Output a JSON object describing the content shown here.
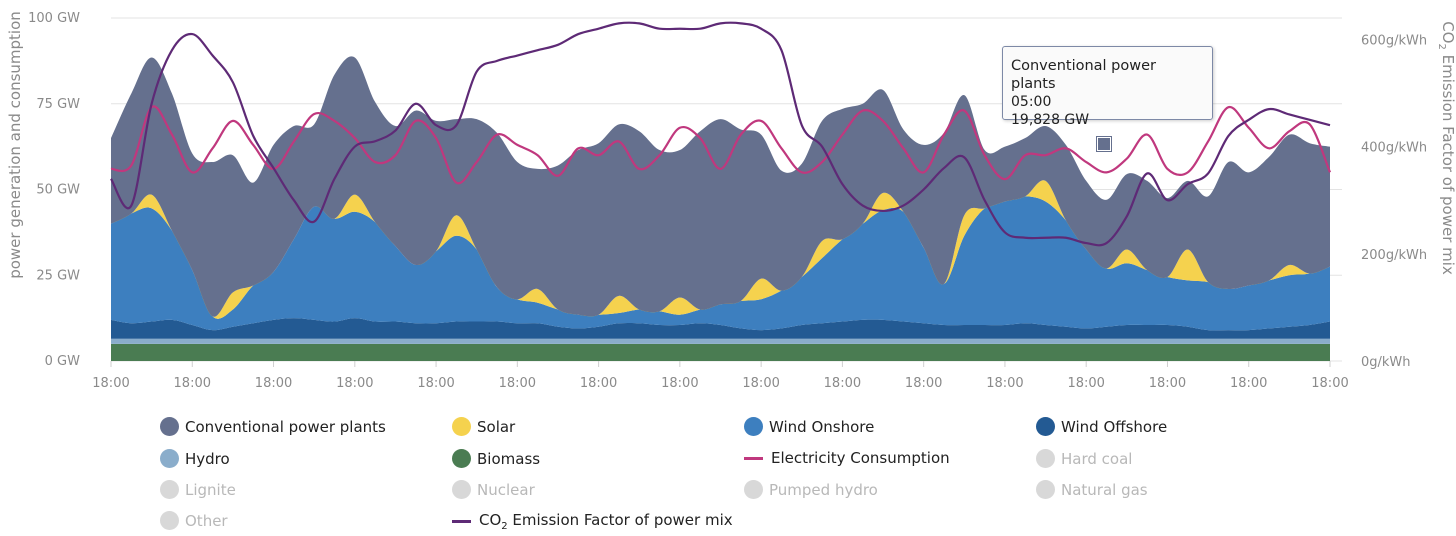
{
  "chart_data": {
    "type": "area",
    "title": "",
    "ylabel": "power generation and consumption",
    "y2label_main": "CO",
    "y2label_sub": "2",
    "y2label_rest": " Emission Factor of power mix",
    "ylim": [
      0,
      100
    ],
    "y2lim": [
      0,
      640
    ],
    "yticks": [
      "0 GW",
      "25 GW",
      "50 GW",
      "75 GW",
      "100 GW"
    ],
    "y2ticks": [
      "0g/kWh",
      "200g/kWh",
      "400g/kWh",
      "600g/kWh"
    ],
    "xticks": [
      "18:00",
      "18:00",
      "18:00",
      "18:00",
      "18:00",
      "18:00",
      "18:00",
      "18:00",
      "18:00",
      "18:00",
      "18:00",
      "18:00",
      "18:00",
      "18:00",
      "18:00",
      "18:00"
    ],
    "grid": true,
    "legend_placement": "bottom",
    "x": [
      0,
      0.25,
      0.5,
      0.75,
      1,
      1.25,
      1.5,
      1.75,
      2,
      2.25,
      2.5,
      2.75,
      3,
      3.25,
      3.5,
      3.75,
      4,
      4.25,
      4.5,
      4.75,
      5,
      5.25,
      5.5,
      5.75,
      6,
      6.25,
      6.5,
      6.75,
      7,
      7.25,
      7.5,
      7.75,
      8,
      8.25,
      8.5,
      8.75,
      9,
      9.25,
      9.5,
      9.75,
      10,
      10.25,
      10.5,
      10.75,
      11,
      11.25,
      11.5,
      11.75,
      12,
      12.25,
      12.5,
      12.75,
      13,
      13.25,
      13.5,
      13.75,
      14,
      14.25,
      14.5,
      14.75,
      15
    ],
    "series": [
      {
        "name": "Biomass",
        "kind": "area",
        "color": "#4a7c52",
        "values": [
          5,
          5,
          5,
          5,
          5,
          5,
          5,
          5,
          5,
          5,
          5,
          5,
          5,
          5,
          5,
          5,
          5,
          5,
          5,
          5,
          5,
          5,
          5,
          5,
          5,
          5,
          5,
          5,
          5,
          5,
          5,
          5,
          5,
          5,
          5,
          5,
          5,
          5,
          5,
          5,
          5,
          5,
          5,
          5,
          5,
          5,
          5,
          5,
          5,
          5,
          5,
          5,
          5,
          5,
          5,
          5,
          5,
          5,
          5,
          5,
          5
        ]
      },
      {
        "name": "Hydro",
        "kind": "area",
        "color": "#8aadcb",
        "values": [
          1.5,
          1.5,
          1.5,
          1.5,
          1.5,
          1.5,
          1.5,
          1.5,
          1.5,
          1.5,
          1.5,
          1.5,
          1.5,
          1.5,
          1.5,
          1.5,
          1.5,
          1.5,
          1.5,
          1.5,
          1.5,
          1.5,
          1.5,
          1.5,
          1.5,
          1.5,
          1.5,
          1.5,
          1.5,
          1.5,
          1.5,
          1.5,
          1.5,
          1.5,
          1.5,
          1.5,
          1.5,
          1.5,
          1.5,
          1.5,
          1.5,
          1.5,
          1.5,
          1.5,
          1.5,
          1.5,
          1.5,
          1.5,
          1.5,
          1.5,
          1.5,
          1.5,
          1.5,
          1.5,
          1.5,
          1.5,
          1.5,
          1.5,
          1.5,
          1.5,
          1.5
        ]
      },
      {
        "name": "Wind Offshore",
        "kind": "area",
        "color": "#235a93",
        "values": [
          5.5,
          4.5,
          5,
          5.5,
          4,
          2.5,
          3.5,
          4.5,
          5.5,
          6,
          5.5,
          5,
          6,
          5,
          5,
          4.5,
          4.5,
          5,
          5,
          5,
          4.5,
          4.5,
          3.5,
          3,
          3.5,
          4.5,
          4.5,
          4,
          4,
          4.5,
          4,
          3,
          2.5,
          3,
          4,
          4.5,
          5,
          5.5,
          5.5,
          5,
          4.5,
          4,
          4,
          4,
          4,
          4.5,
          4,
          3.5,
          3,
          3.5,
          4,
          4,
          4,
          3.5,
          2.5,
          2.5,
          2.5,
          3,
          3.5,
          4,
          5
        ]
      },
      {
        "name": "Wind Onshore",
        "kind": "area",
        "color": "#3d7fbf",
        "values": [
          28,
          32,
          33,
          26,
          16,
          4,
          5,
          11,
          14,
          23,
          33,
          30,
          31,
          29,
          22,
          17,
          21,
          25,
          21,
          10,
          7,
          6,
          5,
          4,
          3.5,
          3,
          4,
          4,
          3,
          4,
          6,
          8,
          9,
          11,
          14,
          19,
          24,
          28,
          32,
          32,
          22,
          12,
          26,
          34,
          36,
          37,
          36,
          31,
          23,
          17,
          18,
          16,
          14,
          13.5,
          14,
          12,
          13,
          14,
          15,
          15,
          16
        ]
      },
      {
        "name": "Solar",
        "kind": "area",
        "color": "#f5d24e",
        "values": [
          0,
          0,
          4,
          0,
          0,
          0,
          5,
          0,
          0,
          0,
          0,
          0,
          5,
          0,
          0,
          0,
          0,
          6,
          0,
          0,
          0,
          4,
          0,
          0,
          0,
          5,
          0,
          0,
          5,
          0,
          0,
          0,
          6,
          0,
          0,
          5,
          0,
          0,
          5,
          0,
          0,
          0,
          6,
          0,
          0,
          0,
          6,
          0,
          0,
          0,
          4,
          0,
          0,
          9,
          0,
          0,
          0,
          0,
          3,
          0,
          0
        ]
      },
      {
        "name": "Conventional power plants",
        "kind": "area",
        "color": "#65708e",
        "values": [
          25,
          35,
          40,
          40,
          34,
          45,
          40,
          30,
          37,
          33,
          24,
          42,
          40,
          35,
          35,
          45,
          38,
          28,
          38,
          45,
          40,
          35,
          42,
          48,
          50,
          50,
          52,
          47,
          43,
          52,
          54,
          50,
          42,
          35,
          33,
          35,
          38,
          35,
          30,
          24,
          30,
          44,
          35,
          17,
          16,
          17,
          16,
          22,
          20,
          20,
          22,
          26,
          23,
          20,
          25,
          37,
          33,
          36,
          38,
          38,
          35
        ]
      },
      {
        "name": "Electricity Consumption",
        "kind": "line",
        "color": "#c0387e",
        "values": [
          56,
          57,
          74,
          66,
          55,
          62,
          70,
          63,
          56,
          64,
          72,
          70,
          65,
          58,
          60,
          70,
          65,
          52,
          58,
          66,
          63,
          60,
          54,
          62,
          60,
          64,
          56,
          60,
          68,
          65,
          56,
          66,
          70,
          62,
          55,
          58,
          66,
          73,
          70,
          62,
          55,
          66,
          73,
          60,
          53,
          60,
          60,
          62,
          58,
          55,
          59,
          66,
          56,
          55,
          64,
          74,
          68,
          62,
          67,
          69,
          55
        ]
      }
    ],
    "secondary_series": [
      {
        "name": "CO2 Emission Factor of power mix",
        "kind": "line",
        "color": "#5e2a76",
        "axis": "right",
        "values": [
          340,
          290,
          480,
          580,
          610,
          570,
          520,
          420,
          360,
          300,
          260,
          340,
          400,
          410,
          430,
          480,
          440,
          440,
          540,
          560,
          570,
          580,
          590,
          610,
          620,
          630,
          630,
          620,
          620,
          620,
          630,
          630,
          620,
          580,
          440,
          400,
          330,
          290,
          280,
          290,
          320,
          360,
          380,
          300,
          240,
          230,
          230,
          230,
          220,
          220,
          270,
          350,
          300,
          330,
          350,
          420,
          450,
          470,
          460,
          450,
          440
        ]
      }
    ],
    "hidden_series": [
      "Hard coal",
      "Lignite",
      "Nuclear",
      "Pumped hydro",
      "Natural gas",
      "Other"
    ]
  },
  "tooltip": {
    "title": "Conventional power plants",
    "time": "05:00",
    "value": "19,828 GW"
  },
  "legend": {
    "items": [
      {
        "label": "Conventional power plants",
        "color": "#65708e",
        "kind": "dot",
        "active": true
      },
      {
        "label": "Solar",
        "color": "#f5d24e",
        "kind": "dot",
        "active": true
      },
      {
        "label": "Wind Onshore",
        "color": "#3d7fbf",
        "kind": "dot",
        "active": true
      },
      {
        "label": "Wind Offshore",
        "color": "#235a93",
        "kind": "dot",
        "active": true
      },
      {
        "label": "Hydro",
        "color": "#8aadcb",
        "kind": "dot",
        "active": true
      },
      {
        "label": "Biomass",
        "color": "#4a7c52",
        "kind": "dot",
        "active": true
      },
      {
        "label": "Electricity Consumption",
        "color": "#c0387e",
        "kind": "line",
        "active": true
      },
      {
        "label": "Hard coal",
        "color": "#d8d8d8",
        "kind": "dot",
        "active": false
      },
      {
        "label": "Lignite",
        "color": "#d8d8d8",
        "kind": "dot",
        "active": false
      },
      {
        "label": "Nuclear",
        "color": "#d8d8d8",
        "kind": "dot",
        "active": false
      },
      {
        "label": "Pumped hydro",
        "color": "#d8d8d8",
        "kind": "dot",
        "active": false
      },
      {
        "label": "Natural gas",
        "color": "#d8d8d8",
        "kind": "dot",
        "active": false
      },
      {
        "label": "Other",
        "color": "#d8d8d8",
        "kind": "dot",
        "active": false
      }
    ],
    "co2": {
      "prefix": "CO",
      "sub": "2",
      "suffix": " Emission Factor of power mix",
      "color": "#5e2a76"
    }
  }
}
